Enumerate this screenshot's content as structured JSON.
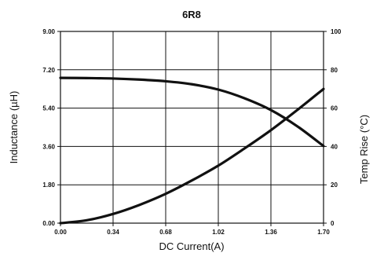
{
  "chart_data": {
    "type": "line",
    "title": "6R8",
    "xlabel": "DC Current(A)",
    "ylabel": "Inductance (µH)",
    "ylabel_right": "Temp Rise (°C)",
    "xlim": [
      0,
      1.7
    ],
    "ylim": [
      0,
      9
    ],
    "ylim_right": [
      0,
      100
    ],
    "x_ticks": [
      "0.00",
      "0.34",
      "0.68",
      "1.02",
      "1.36",
      "1.70"
    ],
    "y_ticks": [
      "0.00",
      "1.80",
      "3.60",
      "5.40",
      "7.20",
      "9.00"
    ],
    "y_ticks_right": [
      "0",
      "20",
      "40",
      "60",
      "80",
      "100"
    ],
    "grid": true,
    "series": [
      {
        "axis": "left",
        "x": [
          0,
          0.17,
          0.34,
          0.51,
          0.68,
          0.85,
          1.02,
          1.19,
          1.36,
          1.53,
          1.7
        ],
        "values": [
          6.82,
          6.81,
          6.79,
          6.74,
          6.66,
          6.52,
          6.27,
          5.86,
          5.31,
          4.55,
          3.62
        ]
      },
      {
        "axis": "right",
        "x": [
          0,
          0.17,
          0.34,
          0.51,
          0.68,
          0.85,
          1.02,
          1.19,
          1.36,
          1.53,
          1.7
        ],
        "values": [
          0,
          1.5,
          4.8,
          9.5,
          15.3,
          22.3,
          30.0,
          39.0,
          48.5,
          59.0,
          70.0
        ]
      }
    ]
  }
}
